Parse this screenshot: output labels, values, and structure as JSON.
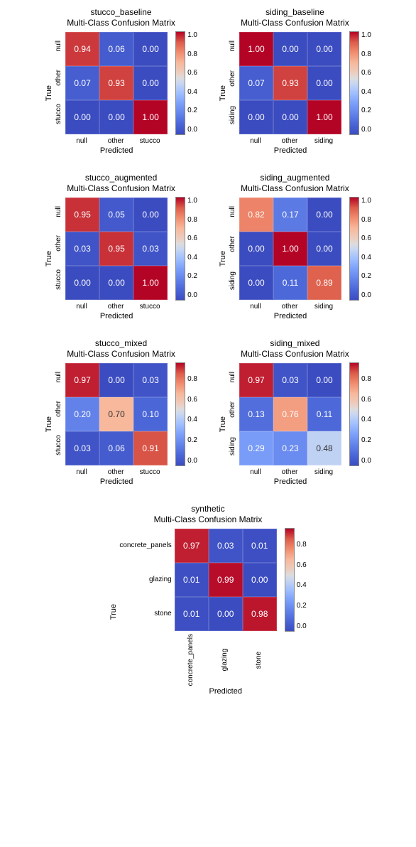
{
  "colormap": {
    "stops": [
      {
        "v": 0.0,
        "c": "#3b4cc0"
      },
      {
        "v": 0.1,
        "c": "#4b66d7"
      },
      {
        "v": 0.2,
        "c": "#6282ea"
      },
      {
        "v": 0.3,
        "c": "#7b9ff9"
      },
      {
        "v": 0.4,
        "c": "#9ebeff"
      },
      {
        "v": 0.5,
        "c": "#c9d7f0"
      },
      {
        "v": 0.55,
        "c": "#dddcdc"
      },
      {
        "v": 0.6,
        "c": "#eccdc0"
      },
      {
        "v": 0.7,
        "c": "#f7b89c"
      },
      {
        "v": 0.8,
        "c": "#f18d6f"
      },
      {
        "v": 0.9,
        "c": "#dc5d4a"
      },
      {
        "v": 1.0,
        "c": "#b40426"
      }
    ],
    "text_light": "#ffffff",
    "text_dark": "#333333",
    "text_threshold_low": 0.35,
    "text_threshold_high": 0.75
  },
  "colorbar_ticks": [
    "1.0",
    "0.8",
    "0.6",
    "0.4",
    "0.2",
    "0.0"
  ],
  "mats": [
    {
      "id": "stucco_baseline",
      "title1": "stucco_baseline",
      "title2": "Multi-Class Confusion Matrix",
      "ylabel": "True",
      "xlabel": "Predicted",
      "rows": [
        "null",
        "other",
        "stucco"
      ],
      "cols": [
        "null",
        "other",
        "stucco"
      ],
      "vals": [
        [
          0.94,
          0.06,
          0.0
        ],
        [
          0.07,
          0.93,
          0.0
        ],
        [
          0.0,
          0.0,
          1.0
        ]
      ],
      "cell": 48,
      "ytick_rot": true,
      "xtick_rot": false,
      "cbar_skip_first": false
    },
    {
      "id": "siding_baseline",
      "title1": "siding_baseline",
      "title2": "Multi-Class Confusion Matrix",
      "ylabel": "True",
      "xlabel": "Predicted",
      "rows": [
        "null",
        "other",
        "siding"
      ],
      "cols": [
        "null",
        "other",
        "siding"
      ],
      "vals": [
        [
          1.0,
          0.0,
          0.0
        ],
        [
          0.07,
          0.93,
          0.0
        ],
        [
          0.0,
          0.0,
          1.0
        ]
      ],
      "cell": 48,
      "ytick_rot": true,
      "xtick_rot": false,
      "cbar_skip_first": false
    },
    {
      "id": "stucco_augmented",
      "title1": "stucco_augmented",
      "title2": "Multi-Class Confusion Matrix",
      "ylabel": "True",
      "xlabel": "Predicted",
      "rows": [
        "null",
        "other",
        "stucco"
      ],
      "cols": [
        "null",
        "other",
        "stucco"
      ],
      "vals": [
        [
          0.95,
          0.05,
          0.0
        ],
        [
          0.03,
          0.95,
          0.03
        ],
        [
          0.0,
          0.0,
          1.0
        ]
      ],
      "cell": 48,
      "ytick_rot": true,
      "xtick_rot": false,
      "cbar_skip_first": false
    },
    {
      "id": "siding_augmented",
      "title1": "siding_augmented",
      "title2": "Multi-Class Confusion Matrix",
      "ylabel": "True",
      "xlabel": "Predicted",
      "rows": [
        "null",
        "other",
        "siding"
      ],
      "cols": [
        "null",
        "other",
        "siding"
      ],
      "vals": [
        [
          0.82,
          0.17,
          0.0
        ],
        [
          0.0,
          1.0,
          0.0
        ],
        [
          0.0,
          0.11,
          0.89
        ]
      ],
      "cell": 48,
      "ytick_rot": true,
      "xtick_rot": false,
      "cbar_skip_first": false
    },
    {
      "id": "stucco_mixed",
      "title1": "stucco_mixed",
      "title2": "Multi-Class Confusion Matrix",
      "ylabel": "True",
      "xlabel": "Predicted",
      "rows": [
        "null",
        "other",
        "stucco"
      ],
      "cols": [
        "null",
        "other",
        "stucco"
      ],
      "vals": [
        [
          0.97,
          0.0,
          0.03
        ],
        [
          0.2,
          0.7,
          0.1
        ],
        [
          0.03,
          0.06,
          0.91
        ]
      ],
      "cell": 48,
      "ytick_rot": true,
      "xtick_rot": false,
      "cbar_skip_first": true
    },
    {
      "id": "siding_mixed",
      "title1": "siding_mixed",
      "title2": "Multi-Class Confusion Matrix",
      "ylabel": "True",
      "xlabel": "Predicted",
      "rows": [
        "null",
        "other",
        "siding"
      ],
      "cols": [
        "null",
        "other",
        "siding"
      ],
      "vals": [
        [
          0.97,
          0.03,
          0.0
        ],
        [
          0.13,
          0.76,
          0.11
        ],
        [
          0.29,
          0.23,
          0.48
        ]
      ],
      "cell": 48,
      "ytick_rot": true,
      "xtick_rot": false,
      "cbar_skip_first": true
    },
    {
      "id": "synthetic",
      "title1": "synthetic",
      "title2": "Multi-Class Confusion Matrix",
      "ylabel": "True",
      "xlabel": "Predicted",
      "rows": [
        "concrete_panels",
        "glazing",
        "stone"
      ],
      "cols": [
        "concrete_panels",
        "glazing",
        "stone"
      ],
      "vals": [
        [
          0.97,
          0.03,
          0.01
        ],
        [
          0.01,
          0.99,
          0.0
        ],
        [
          0.01,
          0.0,
          0.98
        ]
      ],
      "cell": 48,
      "ytick_rot": false,
      "xtick_rot": true,
      "cbar_skip_first": true
    }
  ],
  "layout": {
    "rows": [
      [
        "stucco_baseline",
        "siding_baseline"
      ],
      [
        "stucco_augmented",
        "siding_augmented"
      ],
      [
        "stucco_mixed",
        "siding_mixed"
      ],
      [
        "synthetic"
      ]
    ]
  },
  "fontsize": {
    "title": 12,
    "axis_label": 11,
    "tick": 10,
    "cell": 12
  }
}
